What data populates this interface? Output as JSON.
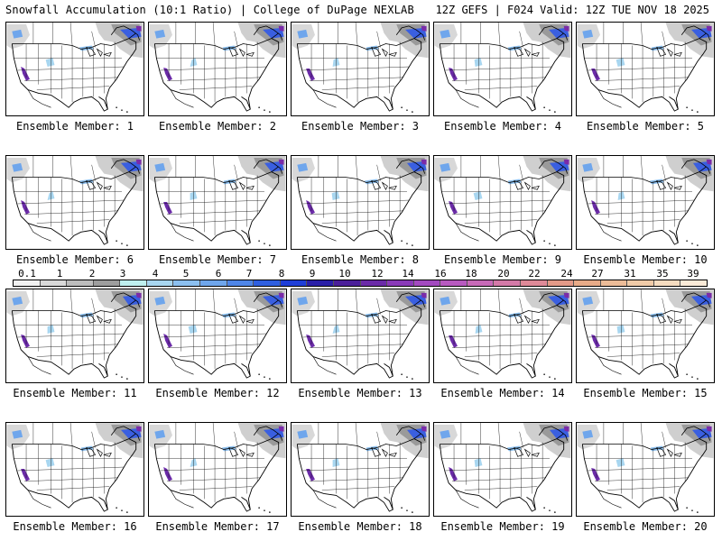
{
  "header": {
    "title": "Snowfall Accumulation (10:1 Ratio) | College of DuPage NEXLAB",
    "run_info": "12Z GEFS | F024 Valid: 12Z TUE NOV 18 2025"
  },
  "members": [
    {
      "label": "Ensemble Member: 1"
    },
    {
      "label": "Ensemble Member: 2"
    },
    {
      "label": "Ensemble Member: 3"
    },
    {
      "label": "Ensemble Member: 4"
    },
    {
      "label": "Ensemble Member: 5"
    },
    {
      "label": "Ensemble Member: 6"
    },
    {
      "label": "Ensemble Member: 7"
    },
    {
      "label": "Ensemble Member: 8"
    },
    {
      "label": "Ensemble Member: 9"
    },
    {
      "label": "Ensemble Member: 10"
    },
    {
      "label": "Ensemble Member: 11"
    },
    {
      "label": "Ensemble Member: 12"
    },
    {
      "label": "Ensemble Member: 13"
    },
    {
      "label": "Ensemble Member: 14"
    },
    {
      "label": "Ensemble Member: 15"
    },
    {
      "label": "Ensemble Member: 16"
    },
    {
      "label": "Ensemble Member: 17"
    },
    {
      "label": "Ensemble Member: 18"
    },
    {
      "label": "Ensemble Member: 19"
    },
    {
      "label": "Ensemble Member: 20"
    }
  ],
  "colorbar": {
    "labels": [
      "0.1",
      "1",
      "2",
      "3",
      "4",
      "5",
      "6",
      "7",
      "8",
      "9",
      "10",
      "12",
      "14",
      "16",
      "18",
      "20",
      "22",
      "24",
      "27",
      "31",
      "35",
      "39"
    ],
    "colors": [
      "#f2f2f2",
      "#d9d9d9",
      "#bdbdbd",
      "#9e9e9e",
      "#bff0ef",
      "#a8d6f0",
      "#8cc0f0",
      "#6fa6ec",
      "#4f86e8",
      "#2f5fe0",
      "#1f3fd8",
      "#2a1fa8",
      "#4b1f9a",
      "#6b2ba8",
      "#8a3ab8",
      "#a34ac0",
      "#b85ac0",
      "#c86ab8",
      "#d47aa8",
      "#de8a98",
      "#e39a88",
      "#e8ab88",
      "#ecbc98",
      "#f0cba8",
      "#f6dcc0",
      "#fbebd8"
    ]
  }
}
